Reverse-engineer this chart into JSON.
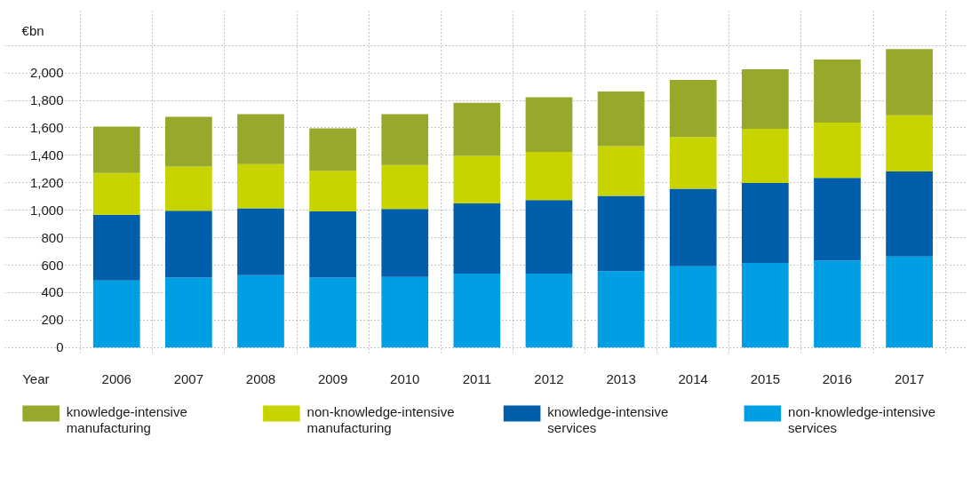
{
  "chart_data": {
    "type": "bar",
    "stacked": true,
    "xlabel": "Year",
    "ylabel": "€bn",
    "categories": [
      "2006",
      "2007",
      "2008",
      "2009",
      "2010",
      "2011",
      "2012",
      "2013",
      "2014",
      "2015",
      "2016",
      "2017"
    ],
    "series": [
      {
        "name": "non-knowledge-intensive services",
        "color": "#009fe3",
        "values": [
          488,
          509,
          527,
          509,
          515,
          539,
          539,
          557,
          593,
          616,
          634,
          664
        ]
      },
      {
        "name": "knowledge-intensive services",
        "color": "#005eaa",
        "values": [
          479,
          488,
          488,
          482,
          494,
          511,
          535,
          547,
          564,
          583,
          601,
          618
        ]
      },
      {
        "name": "non-knowledge-intensive manufacturing",
        "color": "#c8d400",
        "values": [
          304,
          321,
          321,
          297,
          321,
          345,
          351,
          363,
          377,
          394,
          404,
          410
        ]
      },
      {
        "name": "knowledge-intensive manufacturing",
        "color": "#98a82a",
        "values": [
          338,
          363,
          363,
          309,
          369,
          387,
          398,
          398,
          414,
          433,
          458,
          482
        ]
      }
    ],
    "ylim": [
      -40,
      2450
    ],
    "yticks": [
      {
        "value": 0,
        "label": "0"
      },
      {
        "value": 200,
        "label": "200"
      },
      {
        "value": 400,
        "label": "400"
      },
      {
        "value": 600,
        "label": "600"
      },
      {
        "value": 800,
        "label": "800"
      },
      {
        "value": 1000,
        "label": "1,000"
      },
      {
        "value": 1200,
        "label": "1,200"
      },
      {
        "value": 1400,
        "label": "1,400"
      },
      {
        "value": 1600,
        "label": "1,600"
      },
      {
        "value": 1800,
        "label": "1,800"
      },
      {
        "value": 2000,
        "label": "2,000"
      },
      {
        "value": 2200,
        "label": null
      }
    ],
    "grid": true,
    "legend": "bottom"
  }
}
